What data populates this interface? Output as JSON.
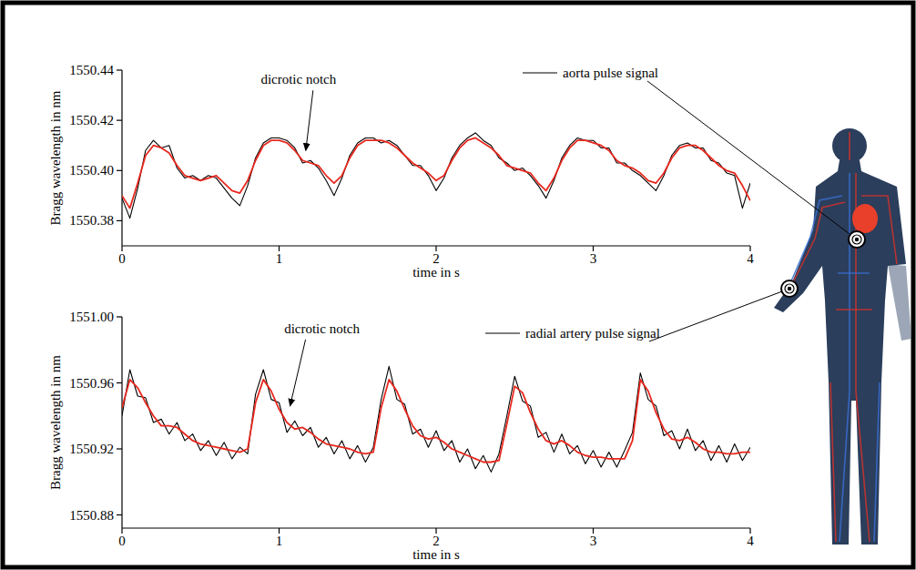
{
  "chart_data": [
    {
      "type": "line",
      "xlabel": "time in s",
      "ylabel": "Bragg wavelength in nm",
      "grid": false,
      "legend": "top right",
      "x": [
        0,
        0.05,
        0.1,
        0.15,
        0.2,
        0.25,
        0.3,
        0.35,
        0.4,
        0.45,
        0.5,
        0.55,
        0.6,
        0.65,
        0.7,
        0.75,
        0.8,
        0.85,
        0.9,
        0.95,
        1,
        1.05,
        1.1,
        1.15,
        1.2,
        1.25,
        1.3,
        1.35,
        1.4,
        1.45,
        1.5,
        1.55,
        1.6,
        1.65,
        1.7,
        1.75,
        1.8,
        1.85,
        1.9,
        1.95,
        2,
        2.05,
        2.1,
        2.15,
        2.2,
        2.25,
        2.3,
        2.35,
        2.4,
        2.45,
        2.5,
        2.55,
        2.6,
        2.65,
        2.7,
        2.75,
        2.8,
        2.85,
        2.9,
        2.95,
        3,
        3.05,
        3.1,
        3.15,
        3.2,
        3.25,
        3.3,
        3.35,
        3.4,
        3.45,
        3.5,
        3.55,
        3.6,
        3.65,
        3.7,
        3.75,
        3.8,
        3.85,
        3.9,
        3.95,
        4
      ],
      "xlim": [
        0,
        4
      ],
      "xticks": [
        0,
        1,
        2,
        3,
        4
      ],
      "ylim": [
        1550.37,
        1550.44
      ],
      "yticks": [
        {
          "value": 1550.38,
          "label": "1550.38"
        },
        {
          "value": 1550.4,
          "label": "1550.40"
        },
        {
          "value": 1550.42,
          "label": "1550.42"
        },
        {
          "value": 1550.44,
          "label": "1550.44"
        }
      ],
      "series": [
        {
          "name": "aorta pulse signal",
          "color": "#000000",
          "values": [
            1550.389,
            1550.381,
            1550.393,
            1550.408,
            1550.412,
            1550.409,
            1550.41,
            1550.401,
            1550.397,
            1550.398,
            1550.396,
            1550.398,
            1550.397,
            1550.393,
            1550.389,
            1550.386,
            1550.394,
            1550.405,
            1550.411,
            1550.413,
            1550.413,
            1550.412,
            1550.409,
            1550.403,
            1550.404,
            1550.401,
            1550.396,
            1550.39,
            1550.397,
            1550.406,
            1550.411,
            1550.413,
            1550.413,
            1550.411,
            1550.412,
            1550.41,
            1550.406,
            1550.402,
            1550.402,
            1550.398,
            1550.392,
            1550.397,
            1550.405,
            1550.41,
            1550.413,
            1550.415,
            1550.412,
            1550.41,
            1550.405,
            1550.403,
            1550.4,
            1550.401,
            1550.398,
            1550.394,
            1550.389,
            1550.396,
            1550.405,
            1550.41,
            1550.413,
            1550.412,
            1550.412,
            1550.409,
            1550.409,
            1550.403,
            1550.403,
            1550.4,
            1550.398,
            1550.395,
            1550.392,
            1550.398,
            1550.406,
            1550.41,
            1550.411,
            1550.409,
            1550.409,
            1550.404,
            1550.403,
            1550.399,
            1550.398,
            1550.385,
            1550.395
          ]
        },
        {
          "color": "#e8281e",
          "values": [
            1550.39,
            1550.385,
            1550.395,
            1550.406,
            1550.41,
            1550.409,
            1550.407,
            1550.402,
            1550.398,
            1550.397,
            1550.396,
            1550.397,
            1550.398,
            1550.395,
            1550.392,
            1550.391,
            1550.396,
            1550.404,
            1550.41,
            1550.412,
            1550.412,
            1550.411,
            1550.408,
            1550.404,
            1550.403,
            1550.402,
            1550.398,
            1550.395,
            1550.398,
            1550.405,
            1550.41,
            1550.412,
            1550.412,
            1550.412,
            1550.411,
            1550.409,
            1550.406,
            1550.403,
            1550.401,
            1550.399,
            1550.396,
            1550.398,
            1550.404,
            1550.409,
            1550.412,
            1550.413,
            1550.411,
            1550.409,
            1550.406,
            1550.402,
            1550.401,
            1550.4,
            1550.399,
            1550.395,
            1550.392,
            1550.397,
            1550.404,
            1550.409,
            1550.412,
            1550.412,
            1550.411,
            1550.41,
            1550.408,
            1550.404,
            1550.402,
            1550.401,
            1550.399,
            1550.396,
            1550.395,
            1550.399,
            1550.405,
            1550.409,
            1550.41,
            1550.41,
            1550.408,
            1550.405,
            1550.402,
            1550.4,
            1550.399,
            1550.394,
            1550.388
          ]
        }
      ],
      "annotations": [
        {
          "text": "dicrotic notch",
          "x": 1.17,
          "y": 1550.408
        }
      ]
    },
    {
      "type": "line",
      "xlabel": "time in s",
      "ylabel": "Bragg wavelength in nm",
      "grid": false,
      "legend": "top right",
      "x": [
        0,
        0.05,
        0.1,
        0.15,
        0.2,
        0.25,
        0.3,
        0.35,
        0.4,
        0.45,
        0.5,
        0.55,
        0.6,
        0.65,
        0.7,
        0.75,
        0.8,
        0.85,
        0.9,
        0.95,
        1,
        1.05,
        1.1,
        1.15,
        1.2,
        1.25,
        1.3,
        1.35,
        1.4,
        1.45,
        1.5,
        1.55,
        1.6,
        1.65,
        1.7,
        1.75,
        1.8,
        1.85,
        1.9,
        1.95,
        2,
        2.05,
        2.1,
        2.15,
        2.2,
        2.25,
        2.3,
        2.35,
        2.4,
        2.45,
        2.5,
        2.55,
        2.6,
        2.65,
        2.7,
        2.75,
        2.8,
        2.85,
        2.9,
        2.95,
        3,
        3.05,
        3.1,
        3.15,
        3.2,
        3.25,
        3.3,
        3.35,
        3.4,
        3.45,
        3.5,
        3.55,
        3.6,
        3.65,
        3.7,
        3.75,
        3.8,
        3.85,
        3.9,
        3.95,
        4
      ],
      "xlim": [
        0,
        4
      ],
      "xticks": [
        0,
        1,
        2,
        3,
        4
      ],
      "ylim": [
        1550.872,
        1551.0
      ],
      "yticks": [
        {
          "value": 1550.88,
          "label": "1550.88"
        },
        {
          "value": 1550.92,
          "label": "1550.92"
        },
        {
          "value": 1550.96,
          "label": "1550.96"
        },
        {
          "value": 1551.0,
          "label": "1551.00"
        }
      ],
      "series": [
        {
          "name": "radial artery pulse signal",
          "color": "#000000",
          "values": [
            1550.94,
            1550.968,
            1550.952,
            1550.951,
            1550.936,
            1550.938,
            1550.929,
            1550.936,
            1550.925,
            1550.929,
            1550.919,
            1550.925,
            1550.916,
            1550.924,
            1550.914,
            1550.921,
            1550.917,
            1550.953,
            1550.968,
            1550.95,
            1550.948,
            1550.93,
            1550.937,
            1550.928,
            1550.933,
            1550.921,
            1550.927,
            1550.917,
            1550.925,
            1550.914,
            1550.922,
            1550.912,
            1550.921,
            1550.95,
            1550.97,
            1550.95,
            1550.947,
            1550.929,
            1550.932,
            1550.921,
            1550.931,
            1550.919,
            1550.925,
            1550.912,
            1550.92,
            1550.908,
            1550.916,
            1550.906,
            1550.917,
            1550.94,
            1550.964,
            1550.949,
            1550.946,
            1550.927,
            1550.93,
            1550.918,
            1550.929,
            1550.917,
            1550.922,
            1550.911,
            1550.919,
            1550.909,
            1550.918,
            1550.909,
            1550.919,
            1550.93,
            1550.966,
            1550.95,
            1550.946,
            1550.928,
            1550.931,
            1550.92,
            1550.932,
            1550.919,
            1550.925,
            1550.913,
            1550.922,
            1550.912,
            1550.923,
            1550.913,
            1550.921
          ]
        },
        {
          "color": "#e8281e",
          "values": [
            1550.945,
            1550.962,
            1550.957,
            1550.948,
            1550.94,
            1550.934,
            1550.934,
            1550.933,
            1550.929,
            1550.925,
            1550.923,
            1550.922,
            1550.921,
            1550.92,
            1550.919,
            1550.918,
            1550.92,
            1550.948,
            1550.962,
            1550.955,
            1550.944,
            1550.936,
            1550.932,
            1550.933,
            1550.93,
            1550.926,
            1550.923,
            1550.922,
            1550.921,
            1550.92,
            1550.918,
            1550.917,
            1550.918,
            1550.945,
            1550.962,
            1550.955,
            1550.944,
            1550.934,
            1550.928,
            1550.926,
            1550.927,
            1550.924,
            1550.92,
            1550.918,
            1550.916,
            1550.914,
            1550.912,
            1550.912,
            1550.913,
            1550.935,
            1550.958,
            1550.954,
            1550.942,
            1550.932,
            1550.925,
            1550.923,
            1550.925,
            1550.922,
            1550.918,
            1550.916,
            1550.915,
            1550.915,
            1550.914,
            1550.914,
            1550.914,
            1550.925,
            1550.962,
            1550.955,
            1550.942,
            1550.932,
            1550.926,
            1550.925,
            1550.927,
            1550.924,
            1550.92,
            1550.918,
            1550.918,
            1550.917,
            1550.917,
            1550.918,
            1550.918
          ]
        }
      ],
      "annotations": [
        {
          "text": "dicrotic notch",
          "x": 1.07,
          "y": 1550.946
        }
      ]
    }
  ]
}
